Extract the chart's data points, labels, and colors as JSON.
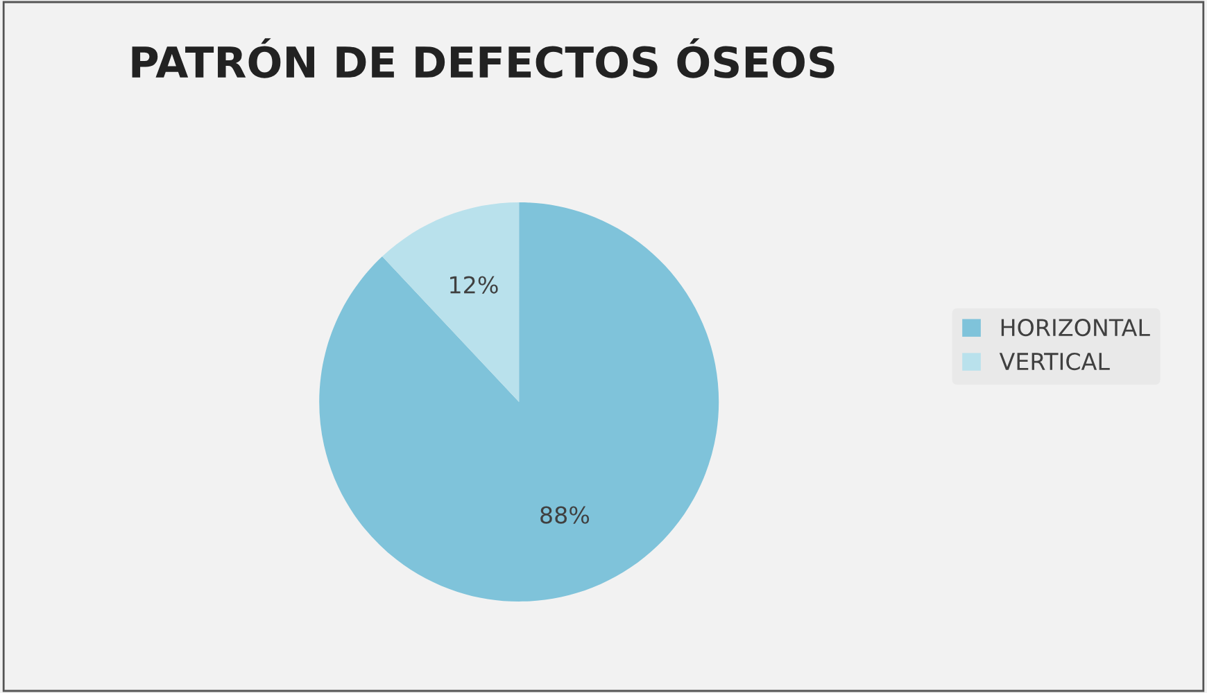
{
  "chart_data": {
    "type": "pie",
    "title": "PATRÓN DE DEFECTOS ÓSEOS",
    "categories": [
      "HORIZONTAL",
      "VERTICAL"
    ],
    "values": [
      88,
      12
    ],
    "colors": [
      "#7fc3da",
      "#b9e1ec"
    ],
    "value_labels": [
      "88%",
      "12%"
    ],
    "legend": "right"
  }
}
